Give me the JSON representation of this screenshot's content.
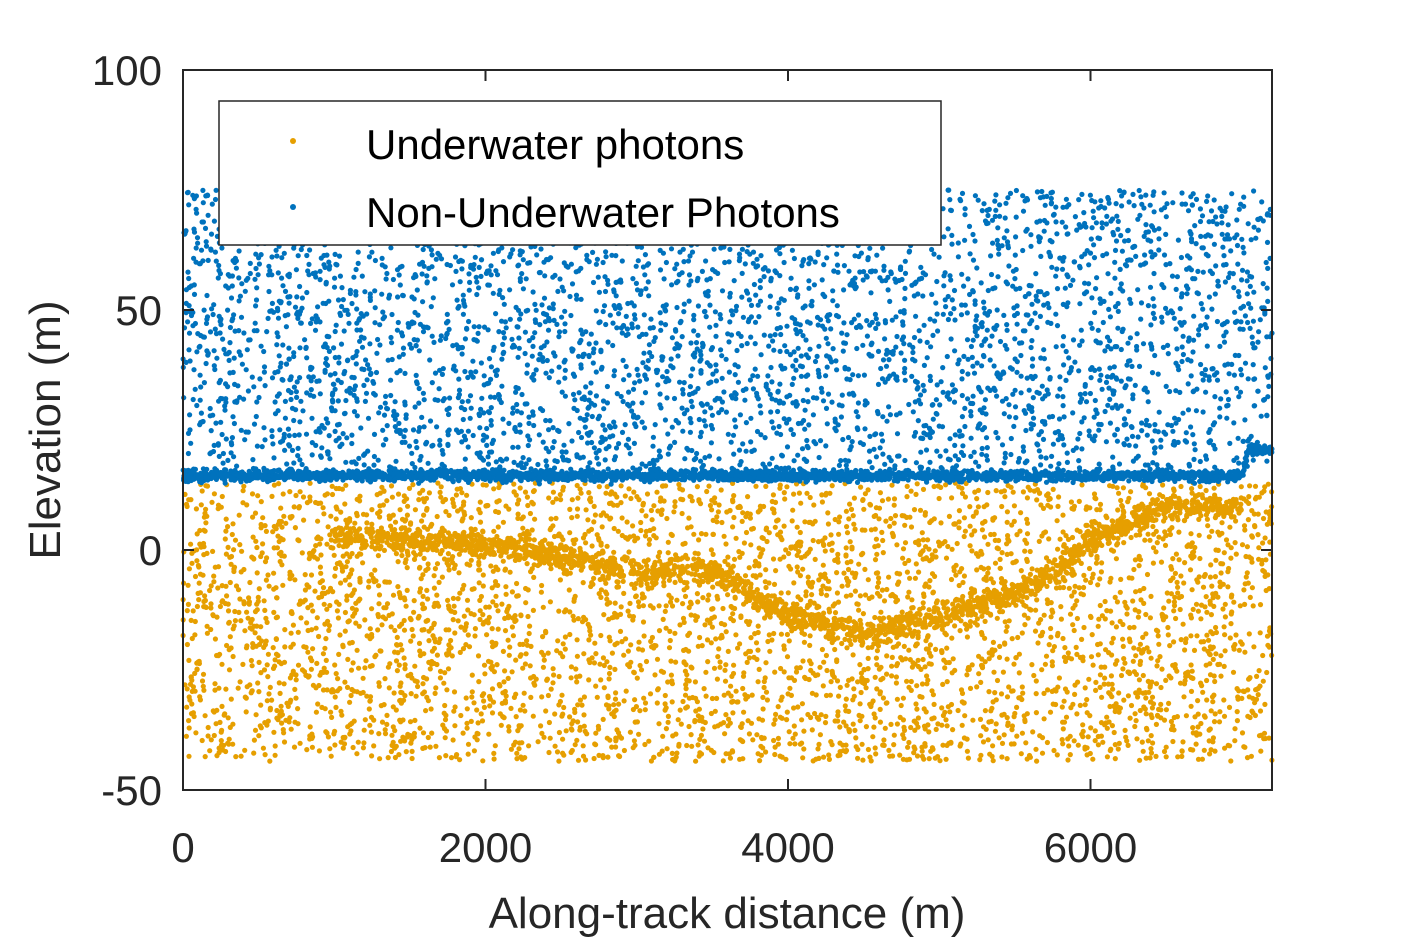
{
  "chart_data": {
    "type": "scatter",
    "title": "",
    "xlabel": "Along-track distance (m)",
    "ylabel": "Elevation (m)",
    "xlim": [
      0,
      7200
    ],
    "ylim": [
      -50,
      100
    ],
    "xticks": [
      0,
      2000,
      4000,
      6000
    ],
    "xtick_labels": [
      "0",
      "2000",
      "4000",
      "6000"
    ],
    "yticks": [
      -50,
      0,
      50,
      100
    ],
    "ytick_labels": [
      "-50",
      "0",
      "50",
      "100"
    ],
    "grid": false,
    "box": true,
    "legend_position": "top-left",
    "series": [
      {
        "name": "Underwater photons",
        "color": "#E69F00",
        "y_range": [
          -44,
          14
        ],
        "bottom_profile": {
          "x": [
            1000,
            1500,
            2000,
            2500,
            3000,
            3500,
            4000,
            4500,
            5000,
            5500,
            5800,
            6000,
            6500,
            7000
          ],
          "y": [
            3,
            2,
            1,
            -1,
            -5,
            -4,
            -14,
            -17,
            -14,
            -9,
            -4,
            2,
            9,
            9
          ]
        }
      },
      {
        "name": "Non-Underwater Photons",
        "color": "#0072BD",
        "y_range": [
          14,
          75
        ],
        "surface_profile": {
          "x": [
            0,
            7000,
            7050,
            7200
          ],
          "y": [
            15.5,
            15.5,
            21,
            21
          ]
        }
      }
    ]
  }
}
